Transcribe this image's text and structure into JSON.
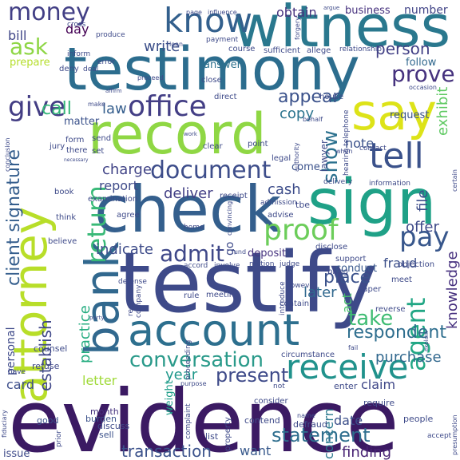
{
  "words": [
    {
      "text": "evidence",
      "color": "#3b1a63"
    },
    {
      "text": "testify",
      "color": "#3e4a89"
    },
    {
      "text": "testimony",
      "color": "#2c6d8e"
    },
    {
      "text": "check",
      "color": "#345f8d"
    },
    {
      "text": "witness",
      "color": "#2a788e"
    },
    {
      "text": "record",
      "color": "#8fd744"
    },
    {
      "text": "account",
      "color": "#2d6f8e"
    },
    {
      "text": "sign",
      "color": "#1fa187"
    },
    {
      "text": "attorney",
      "color": "#b8de29"
    },
    {
      "text": "bank",
      "color": "#31688e"
    },
    {
      "text": "say",
      "color": "#dde318"
    },
    {
      "text": "receive",
      "color": "#20928c"
    },
    {
      "text": "office",
      "color": "#433e85"
    },
    {
      "text": "tell",
      "color": "#3b528b"
    },
    {
      "text": "document",
      "color": "#3d4d8a"
    },
    {
      "text": "know",
      "color": "#33608d"
    },
    {
      "text": "money",
      "color": "#423f85"
    },
    {
      "text": "proof",
      "color": "#6ccd5a"
    },
    {
      "text": "return",
      "color": "#38b977"
    },
    {
      "text": "conversation",
      "color": "#2a9a8a"
    },
    {
      "text": "client signature",
      "color": "#355e8d"
    },
    {
      "text": "agent",
      "color": "#22a785"
    },
    {
      "text": "person",
      "color": "#424086"
    },
    {
      "text": "admit",
      "color": "#3f4889"
    },
    {
      "text": "pay",
      "color": "#38578c"
    },
    {
      "text": "give",
      "color": "#433d84"
    },
    {
      "text": "prove",
      "color": "#46327e"
    },
    {
      "text": "show",
      "color": "#2c718e"
    },
    {
      "text": "ask",
      "color": "#8ed645"
    },
    {
      "text": "transaction",
      "color": "#3b528b"
    },
    {
      "text": "statement",
      "color": "#2e6e8e"
    },
    {
      "text": "present",
      "color": "#3e4a89"
    },
    {
      "text": "respondent",
      "color": "#2e6e8e"
    },
    {
      "text": "take",
      "color": "#3fbc73"
    },
    {
      "text": "establish",
      "color": "#3f4788"
    },
    {
      "text": "charge",
      "color": "#414487"
    },
    {
      "text": "deliver",
      "color": "#423f85"
    },
    {
      "text": "write",
      "color": "#3c4f8a"
    },
    {
      "text": "call",
      "color": "#35b779"
    },
    {
      "text": "appear",
      "color": "#3b528b"
    },
    {
      "text": "copy",
      "color": "#2b748e"
    },
    {
      "text": "indicate",
      "color": "#3e4c8a"
    },
    {
      "text": "cash",
      "color": "#3d4d8a"
    },
    {
      "text": "offer",
      "color": "#3e4a89"
    },
    {
      "text": "letter",
      "color": "#a0da39"
    },
    {
      "text": "year",
      "color": "#1f988b"
    },
    {
      "text": "practice",
      "color": "#26ad81"
    },
    {
      "text": "knowledge",
      "color": "#46307e"
    },
    {
      "text": "purchase",
      "color": "#31688e"
    },
    {
      "text": "want",
      "color": "#38598c"
    },
    {
      "text": "finding",
      "color": "#482374"
    },
    {
      "text": "fraud",
      "color": "#3c4f8a"
    },
    {
      "text": "exhibit",
      "color": "#5ec962"
    },
    {
      "text": "obtain",
      "color": "#46327e"
    },
    {
      "text": "business",
      "color": "#46317e"
    },
    {
      "text": "number",
      "color": "#414487"
    },
    {
      "text": "law",
      "color": "#355e8d"
    },
    {
      "text": "note",
      "color": "#3b528b"
    },
    {
      "text": "date",
      "color": "#3c4f8a"
    },
    {
      "text": "place",
      "color": "#3b528b"
    },
    {
      "text": "report",
      "color": "#3e4a89"
    },
    {
      "text": "file",
      "color": "#3d4d8a"
    },
    {
      "text": "card",
      "color": "#3d4e8a"
    },
    {
      "text": "concern",
      "color": "#2a788e"
    },
    {
      "text": "claim",
      "color": "#3f4788"
    },
    {
      "text": "personal",
      "color": "#3e4989"
    },
    {
      "text": "later",
      "color": "#31688e"
    },
    {
      "text": "act",
      "color": "#4ac16d"
    },
    {
      "text": "bill",
      "color": "#404688"
    },
    {
      "text": "day",
      "color": "#440154"
    },
    {
      "text": "prepare",
      "color": "#b5de2b"
    },
    {
      "text": "matter",
      "color": "#3b528b"
    },
    {
      "text": "answer",
      "color": "#2c718e"
    },
    {
      "text": "follow",
      "color": "#31688e"
    },
    {
      "text": "request",
      "color": "#3b528b"
    },
    {
      "text": "lawyer",
      "color": "#3e4a89"
    },
    {
      "text": "come",
      "color": "#3b528b"
    },
    {
      "text": "deposit",
      "color": "#46337f"
    },
    {
      "text": "conduct",
      "color": "#38588c"
    },
    {
      "text": "issue",
      "color": "#3e4a89"
    },
    {
      "text": "weight",
      "color": "#1f9e89"
    },
    {
      "text": "month",
      "color": "#46327e"
    },
    {
      "text": "refuse",
      "color": "#3f4788"
    },
    {
      "text": "counsel",
      "color": "#3e4a89"
    },
    {
      "text": "good",
      "color": "#3b528b"
    },
    {
      "text": "sell",
      "color": "#3b528b"
    },
    {
      "text": "discuss",
      "color": "#3e4a89"
    },
    {
      "text": "burden",
      "color": "#3b528b"
    },
    {
      "text": "list",
      "color": "#3e4a89"
    },
    {
      "text": "contend",
      "color": "#3e4a89"
    },
    {
      "text": "property",
      "color": "#3e4a89"
    },
    {
      "text": "defraud",
      "color": "#3e4a89"
    },
    {
      "text": "require",
      "color": "#3e4a89"
    },
    {
      "text": "people",
      "color": "#3e4a89"
    },
    {
      "text": "enter",
      "color": "#3e4a89"
    },
    {
      "text": "consider",
      "color": "#3e4a89"
    },
    {
      "text": "circumstance",
      "color": "#3e4a89"
    },
    {
      "text": "meeting",
      "color": "#3e4a89"
    },
    {
      "text": "contain",
      "color": "#3e4a89"
    },
    {
      "text": "rule",
      "color": "#3e4a89"
    },
    {
      "text": "support",
      "color": "#3e4a89"
    },
    {
      "text": "objection",
      "color": "#3e4a89"
    },
    {
      "text": "paper",
      "color": "#3e4a89"
    },
    {
      "text": "meet",
      "color": "#3e4a89"
    },
    {
      "text": "reverse",
      "color": "#3e4a89"
    },
    {
      "text": "bring",
      "color": "#3e4a89"
    },
    {
      "text": "however",
      "color": "#3e4a89"
    },
    {
      "text": "introduce",
      "color": "#3e4a89"
    },
    {
      "text": "believe",
      "color": "#3e4a89"
    },
    {
      "text": "think",
      "color": "#3e4a89"
    },
    {
      "text": "agree",
      "color": "#3e4a89"
    },
    {
      "text": "book",
      "color": "#3e4a89"
    },
    {
      "text": "examination",
      "color": "#3e4a89"
    },
    {
      "text": "receipt",
      "color": "#3e4a89"
    },
    {
      "text": "advise",
      "color": "#3e4a89"
    },
    {
      "text": "disclose",
      "color": "#3e4a89"
    },
    {
      "text": "home",
      "color": "#3e4a89"
    },
    {
      "text": "jury",
      "color": "#3e4a89"
    },
    {
      "text": "form",
      "color": "#3e4a89"
    },
    {
      "text": "send",
      "color": "#3e4a89"
    },
    {
      "text": "there",
      "color": "#3e4a89"
    },
    {
      "text": "set",
      "color": "#3e4a89"
    },
    {
      "text": "clear",
      "color": "#3e4a89"
    },
    {
      "text": "point",
      "color": "#3e4a89"
    },
    {
      "text": "legal",
      "color": "#3e4a89"
    },
    {
      "text": "information",
      "color": "#3e4a89"
    },
    {
      "text": "delivery",
      "color": "#3e4a89"
    },
    {
      "text": "contact",
      "color": "#3e4a89"
    },
    {
      "text": "house",
      "color": "#3e4a89"
    },
    {
      "text": "direct",
      "color": "#3e4a89"
    },
    {
      "text": "close",
      "color": "#3e4a89"
    },
    {
      "text": "course",
      "color": "#3e4a89"
    },
    {
      "text": "sufficient",
      "color": "#3e4a89"
    },
    {
      "text": "allege",
      "color": "#3e4a89"
    },
    {
      "text": "relationship",
      "color": "#3e4a89"
    },
    {
      "text": "payment",
      "color": "#3e4a89"
    },
    {
      "text": "produce",
      "color": "#3e4a89"
    },
    {
      "text": "deny",
      "color": "#3e4a89"
    },
    {
      "text": "deal",
      "color": "#3e4a89"
    },
    {
      "text": "cross",
      "color": "#3e4a89"
    },
    {
      "text": "inform",
      "color": "#3e4a89"
    },
    {
      "text": "error",
      "color": "#3e4a89"
    },
    {
      "text": "influence",
      "color": "#3e4a89"
    },
    {
      "text": "page",
      "color": "#3e4a89"
    },
    {
      "text": "argue",
      "color": "#3e4a89"
    },
    {
      "text": "forgery",
      "color": "#3e4a89"
    },
    {
      "text": "conclusion",
      "color": "#3e4a89"
    },
    {
      "text": "authority",
      "color": "#3e4a89"
    },
    {
      "text": "behalf",
      "color": "#3e4a89"
    },
    {
      "text": "proceed",
      "color": "#3e4a89"
    },
    {
      "text": "loan",
      "color": "#3e4a89"
    },
    {
      "text": "occasion",
      "color": "#3e4a89"
    },
    {
      "text": "fund",
      "color": "#3e4a89"
    },
    {
      "text": "motion",
      "color": "#3e4a89"
    },
    {
      "text": "judge",
      "color": "#3e4a89"
    },
    {
      "text": "accord",
      "color": "#3e4a89"
    },
    {
      "text": "involve",
      "color": "#3e4a89"
    },
    {
      "text": "defense",
      "color": "#3e4a89"
    },
    {
      "text": "represent",
      "color": "#3e4a89"
    },
    {
      "text": "company",
      "color": "#3e4a89"
    },
    {
      "text": "proceeding",
      "color": "#3e4a89"
    },
    {
      "text": "purpose",
      "color": "#3e4a89"
    },
    {
      "text": "complaint",
      "color": "#3e4a89"
    },
    {
      "text": "prior",
      "color": "#3e4a89"
    },
    {
      "text": "fiduciary",
      "color": "#3e4a89"
    },
    {
      "text": "have",
      "color": "#3e4a89"
    },
    {
      "text": "name",
      "color": "#3e4a89"
    },
    {
      "text": "accept",
      "color": "#3e4a89"
    },
    {
      "text": "presumption",
      "color": "#3e4a89"
    },
    {
      "text": "explain",
      "color": "#3e4a89"
    },
    {
      "text": "certain",
      "color": "#3e4a89"
    },
    {
      "text": "fail",
      "color": "#3e4a89"
    },
    {
      "text": "work",
      "color": "#3e4a89"
    },
    {
      "text": "affirm",
      "color": "#3e4a89"
    },
    {
      "text": "when",
      "color": "#3e4a89"
    },
    {
      "text": "convincing",
      "color": "#3e4a89"
    },
    {
      "text": "admission",
      "color": "#3e4a89"
    },
    {
      "text": "hearing telephone",
      "color": "#3e4a89"
    },
    {
      "text": "necessary",
      "color": "#3e4a89"
    },
    {
      "text": "party",
      "color": "#3e4a89"
    },
    {
      "text": "not",
      "color": "#3e4a89"
    },
    {
      "text": "make",
      "color": "#3e4a89"
    },
    {
      "text": "tbe",
      "color": "#3e4a89"
    },
    {
      "text": "go",
      "color": "#3e4a89"
    }
  ]
}
